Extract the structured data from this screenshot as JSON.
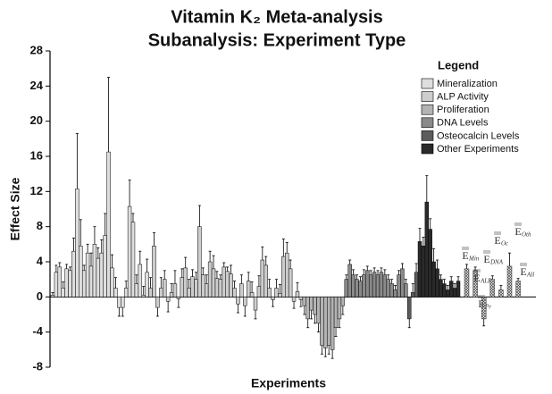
{
  "chart_data": {
    "type": "bar",
    "title": "Vitamin K₂ Meta-analysis",
    "subtitle": "Subanalysis: Experiment Type",
    "y_label": "Effect Size",
    "x_label": "Experiments",
    "legend_title": "Legend",
    "legend": "top-right",
    "ylim": [
      -8,
      28
    ],
    "yticks": [
      -8,
      -4,
      0,
      4,
      8,
      12,
      16,
      20,
      24,
      28
    ],
    "series": [
      {
        "name": "Mineralization",
        "color": "#dedede",
        "values": [
          0.2,
          2.8,
          3.4,
          1.0,
          3.2,
          3.0,
          5.2,
          12.3,
          5.8,
          3.0,
          5.0,
          3.5,
          6.0,
          4.4,
          5.0,
          7.0,
          16.5,
          3.3,
          1.0,
          -1.2,
          -1.2,
          1.0,
          10.3,
          8.5,
          1.5,
          3.7,
          0.2,
          2.8
        ],
        "errors": [
          0.3,
          0.8,
          0.5,
          0.7,
          0.5,
          0.4,
          1.5,
          6.3,
          3.0,
          0.6,
          1.0,
          1.5,
          2.0,
          1.2,
          1.5,
          2.5,
          8.5,
          1.5,
          1.2,
          1.0,
          1.0,
          0.8,
          3.0,
          1.0,
          1.0,
          1.5,
          1.0,
          1.5
        ]
      },
      {
        "name": "ALP Activity",
        "color": "#cdcdcd",
        "values": [
          1.0,
          5.8,
          -1.2,
          1.0,
          2.0,
          -0.5,
          0.5,
          1.5,
          -0.2,
          2.2,
          3.3,
          1.0,
          2.3,
          2.0,
          8.0,
          2.5,
          1.5,
          4.0,
          3.2,
          2.1,
          2.0,
          3.4,
          2.9,
          2.6,
          1.0,
          -0.8,
          1.5,
          -1.0,
          1.8,
          0.5,
          -1.5,
          1.2,
          4.2,
          3.6,
          1.0,
          -0.3,
          1.0,
          0.4,
          4.6,
          5.0,
          3.2,
          -0.5,
          0.6,
          -0.3
        ],
        "errors": [
          1.2,
          1.5,
          1.0,
          1.2,
          1.0,
          1.2,
          1.0,
          1.5,
          1.0,
          1.0,
          1.2,
          1.0,
          0.8,
          0.8,
          2.4,
          0.8,
          1.0,
          1.2,
          1.5,
          0.8,
          0.5,
          0.5,
          0.5,
          1.0,
          0.8,
          1.0,
          1.0,
          1.2,
          1.0,
          1.2,
          1.0,
          1.2,
          1.5,
          1.0,
          1.0,
          0.8,
          1.0,
          1.0,
          2.0,
          1.2,
          1.0,
          0.8,
          1.0,
          0.8
        ]
      },
      {
        "name": "Proliferation",
        "color": "#b4b4b4",
        "values": [
          -1.0,
          -2.5,
          -1.5,
          -2.0,
          -3.0,
          -5.5,
          -5.8,
          -5.5,
          -6.0,
          -3.5,
          -2.5,
          -1.0
        ],
        "errors": [
          1.0,
          1.0,
          1.0,
          1.0,
          1.0,
          1.0,
          1.0,
          1.0,
          1.0,
          1.0,
          1.0,
          1.0
        ]
      },
      {
        "name": "DNA Levels",
        "color": "#8a8a8a",
        "values": [
          2.0,
          3.7,
          2.5,
          2.0,
          1.8,
          2.5,
          3.0,
          2.5,
          2.8,
          2.5,
          2.8,
          2.5,
          2.0,
          1.5,
          0.8,
          2.5,
          3.2,
          1.5
        ],
        "errors": [
          0.5,
          0.5,
          0.6,
          0.5,
          0.5,
          0.6,
          0.5,
          0.5,
          0.5,
          0.5,
          0.5,
          0.6,
          0.5,
          0.5,
          0.5,
          0.5,
          0.6,
          0.5
        ]
      },
      {
        "name": "Osteocalcin Levels",
        "color": "#5c5c5c",
        "values": [
          -2.5,
          0.5,
          2.8
        ],
        "errors": [
          1.0,
          1.0,
          1.0
        ]
      },
      {
        "name": "Other Experiments",
        "color": "#2a2a2a",
        "values": [
          6.3,
          5.8,
          10.8,
          7.7,
          4.0,
          3.2,
          2.0,
          1.5,
          0.8,
          1.8,
          1.0,
          1.8
        ],
        "errors": [
          1.5,
          1.0,
          3.0,
          1.2,
          1.5,
          1.0,
          0.5,
          0.5,
          0.5,
          0.5,
          0.5,
          0.5
        ]
      }
    ],
    "estimates": {
      "symbol": "E",
      "hatch": true,
      "labels": [
        "Min",
        "ALP",
        "Pr",
        "DNA",
        "Oc",
        "Oth",
        "All"
      ],
      "values": [
        3.2,
        3.0,
        -2.5,
        2.0,
        0.8,
        3.5,
        1.8
      ],
      "errors": [
        0.5,
        0.4,
        0.8,
        0.4,
        0.5,
        1.5,
        0.3
      ]
    }
  }
}
